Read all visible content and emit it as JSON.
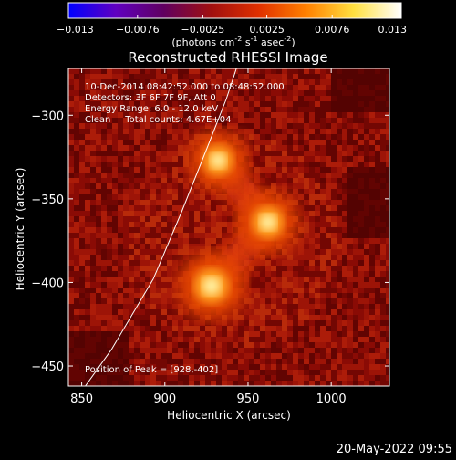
{
  "chart_data": {
    "type": "heatmap",
    "title": "Reconstructed RHESSI Image",
    "xlabel": "Heliocentric X (arcsec)",
    "ylabel": "Heliocentric Y (arcsec)",
    "xlim": [
      842,
      1035
    ],
    "ylim": [
      -462,
      -272
    ],
    "x_ticks": [
      850,
      900,
      950,
      1000
    ],
    "y_ticks": [
      -300,
      -350,
      -400,
      -450
    ],
    "colorbar": {
      "range": [
        -0.013,
        0.013
      ],
      "ticks": [
        "-0.013",
        "-0.0076",
        "-0.0025",
        "0.0025",
        "0.0076",
        "0.013"
      ],
      "tick_values": [
        -0.013,
        -0.0076,
        -0.0025,
        0.0025,
        0.0076,
        0.013
      ],
      "label_prefix": "(photons cm",
      "label_sup1": "-2",
      "label_mid1": " s",
      "label_sup2": "-1",
      "label_mid2": " asec",
      "label_sup3": "-2",
      "label_suffix": ")",
      "colors": [
        "#0000ff",
        "#6000c0",
        "#600060",
        "#a01010",
        "#e03000",
        "#ff8000",
        "#ffe040",
        "#ffffff"
      ]
    },
    "annotations": [
      "10-Dec-2014 08:42:52.000 to 08:48:52.000",
      "Detectors: 3F 6F 7F 9F, Att 0",
      "Energy Range: 6.0 - 12.0 keV",
      "Clean     Total counts: 4.67E+04"
    ],
    "peak_label": "Position of Peak = [928,-402]",
    "sources": [
      {
        "x": 928,
        "y": -402,
        "intensity": 1.0
      },
      {
        "x": 962,
        "y": -364,
        "intensity": 0.9
      },
      {
        "x": 932,
        "y": -327,
        "intensity": 0.85
      }
    ],
    "limb": [
      [
        845,
        -472
      ],
      [
        868,
        -440
      ],
      [
        893,
        -398
      ],
      [
        910,
        -358
      ],
      [
        926,
        -318
      ],
      [
        937,
        -290
      ],
      [
        943,
        -272
      ]
    ]
  },
  "timestamp": "20-May-2022 09:55"
}
